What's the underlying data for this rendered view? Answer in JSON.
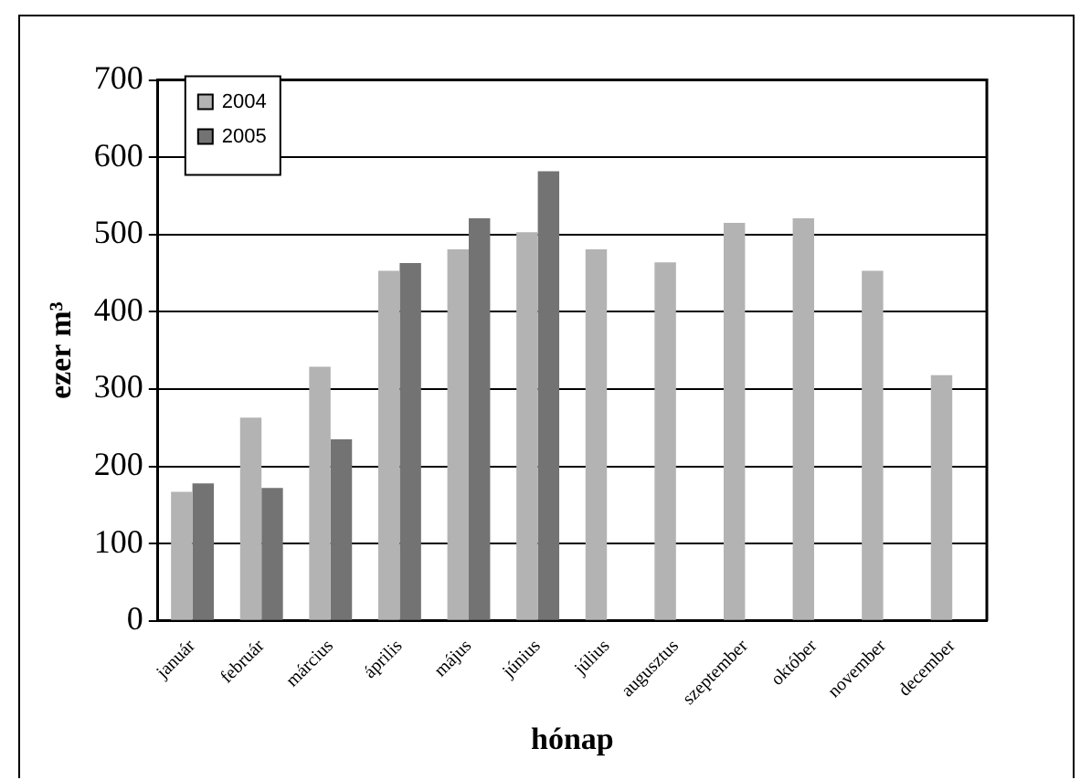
{
  "chart_data": {
    "type": "bar",
    "xlabel": "hónap",
    "ylabel": "ezer m³",
    "categories": [
      "január",
      "február",
      "március",
      "április",
      "május",
      "június",
      "július",
      "augusztus",
      "szeptember",
      "október",
      "november",
      "december"
    ],
    "series": [
      {
        "name": "2004",
        "color": "#b3b3b3",
        "values": [
          167,
          263,
          329,
          453,
          481,
          503,
          481,
          464,
          515,
          521,
          453,
          318
        ]
      },
      {
        "name": "2005",
        "color": "#737373",
        "values": [
          178,
          172,
          235,
          463,
          521,
          582,
          null,
          null,
          null,
          null,
          null,
          null
        ]
      }
    ],
    "ylim": [
      0,
      700
    ],
    "yticks": [
      0,
      100,
      200,
      300,
      400,
      500,
      600,
      700
    ],
    "grid": "y",
    "legend": "top left"
  }
}
